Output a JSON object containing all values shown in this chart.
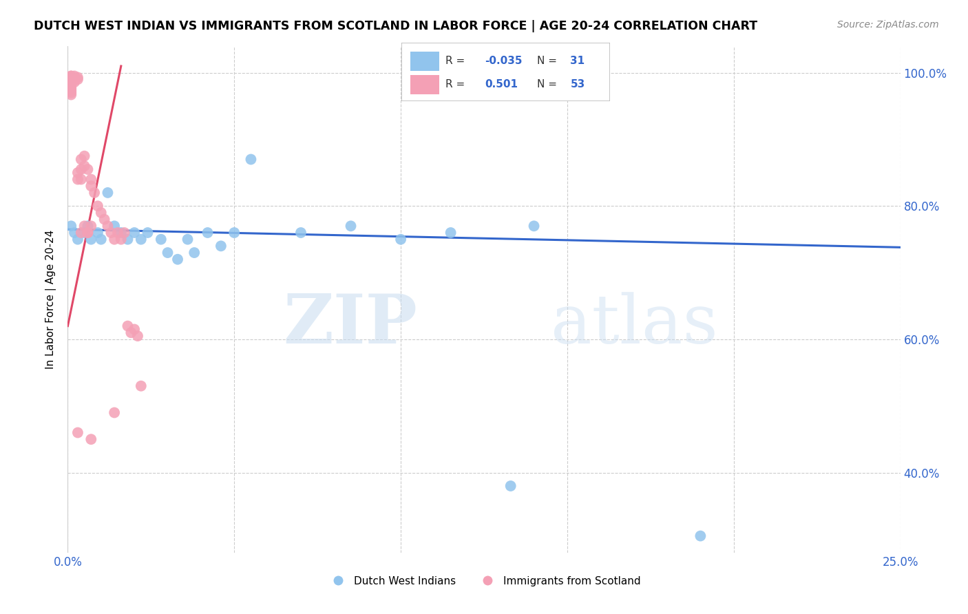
{
  "title": "DUTCH WEST INDIAN VS IMMIGRANTS FROM SCOTLAND IN LABOR FORCE | AGE 20-24 CORRELATION CHART",
  "source": "Source: ZipAtlas.com",
  "ylabel": "In Labor Force | Age 20-24",
  "xlim": [
    0.0,
    0.25
  ],
  "ylim": [
    0.28,
    1.04
  ],
  "xticks": [
    0.0,
    0.05,
    0.1,
    0.15,
    0.2,
    0.25
  ],
  "xtick_labels": [
    "0.0%",
    "",
    "",
    "",
    "",
    "25.0%"
  ],
  "yticks": [
    0.4,
    0.6,
    0.8,
    1.0
  ],
  "ytick_labels": [
    "40.0%",
    "60.0%",
    "80.0%",
    "100.0%"
  ],
  "blue_color": "#91C4ED",
  "pink_color": "#F4A0B5",
  "blue_line_color": "#3366CC",
  "pink_line_color": "#E04868",
  "legend_label_blue": "Dutch West Indians",
  "legend_label_pink": "Immigrants from Scotland",
  "watermark_zip": "ZIP",
  "watermark_atlas": "atlas",
  "blue_scatter": [
    [
      0.001,
      0.77
    ],
    [
      0.002,
      0.76
    ],
    [
      0.003,
      0.75
    ],
    [
      0.005,
      0.76
    ],
    [
      0.006,
      0.77
    ],
    [
      0.007,
      0.75
    ],
    [
      0.009,
      0.76
    ],
    [
      0.01,
      0.75
    ],
    [
      0.012,
      0.82
    ],
    [
      0.014,
      0.77
    ],
    [
      0.016,
      0.76
    ],
    [
      0.018,
      0.75
    ],
    [
      0.02,
      0.76
    ],
    [
      0.022,
      0.75
    ],
    [
      0.024,
      0.76
    ],
    [
      0.028,
      0.75
    ],
    [
      0.03,
      0.73
    ],
    [
      0.033,
      0.72
    ],
    [
      0.036,
      0.75
    ],
    [
      0.038,
      0.73
    ],
    [
      0.042,
      0.76
    ],
    [
      0.046,
      0.74
    ],
    [
      0.05,
      0.76
    ],
    [
      0.055,
      0.87
    ],
    [
      0.07,
      0.76
    ],
    [
      0.085,
      0.77
    ],
    [
      0.1,
      0.75
    ],
    [
      0.115,
      0.76
    ],
    [
      0.14,
      0.77
    ],
    [
      0.133,
      0.38
    ],
    [
      0.19,
      0.305
    ]
  ],
  "pink_scatter": [
    [
      0.001,
      0.995
    ],
    [
      0.001,
      0.995
    ],
    [
      0.001,
      0.993
    ],
    [
      0.001,
      0.99
    ],
    [
      0.001,
      0.988
    ],
    [
      0.001,
      0.985
    ],
    [
      0.001,
      0.982
    ],
    [
      0.001,
      0.979
    ],
    [
      0.001,
      0.976
    ],
    [
      0.001,
      0.973
    ],
    [
      0.001,
      0.97
    ],
    [
      0.001,
      0.967
    ],
    [
      0.002,
      0.995
    ],
    [
      0.002,
      0.992
    ],
    [
      0.002,
      0.989
    ],
    [
      0.002,
      0.986
    ],
    [
      0.003,
      0.993
    ],
    [
      0.003,
      0.99
    ],
    [
      0.003,
      0.85
    ],
    [
      0.003,
      0.84
    ],
    [
      0.004,
      0.87
    ],
    [
      0.004,
      0.855
    ],
    [
      0.004,
      0.84
    ],
    [
      0.005,
      0.875
    ],
    [
      0.005,
      0.86
    ],
    [
      0.006,
      0.855
    ],
    [
      0.007,
      0.84
    ],
    [
      0.007,
      0.83
    ],
    [
      0.008,
      0.82
    ],
    [
      0.009,
      0.8
    ],
    [
      0.01,
      0.79
    ],
    [
      0.011,
      0.78
    ],
    [
      0.012,
      0.77
    ],
    [
      0.013,
      0.76
    ],
    [
      0.014,
      0.75
    ],
    [
      0.015,
      0.76
    ],
    [
      0.016,
      0.75
    ],
    [
      0.017,
      0.76
    ],
    [
      0.018,
      0.62
    ],
    [
      0.019,
      0.61
    ],
    [
      0.02,
      0.615
    ],
    [
      0.021,
      0.605
    ],
    [
      0.004,
      0.76
    ],
    [
      0.005,
      0.77
    ],
    [
      0.006,
      0.76
    ],
    [
      0.006,
      0.76
    ],
    [
      0.007,
      0.77
    ],
    [
      0.022,
      0.53
    ],
    [
      0.014,
      0.49
    ],
    [
      0.007,
      0.45
    ],
    [
      0.003,
      0.46
    ]
  ],
  "blue_line": {
    "x0": 0.0,
    "y0": 0.765,
    "x1": 0.25,
    "y1": 0.738
  },
  "pink_line": {
    "x0": 0.0,
    "y0": 0.62,
    "x1": 0.016,
    "y1": 1.01
  }
}
